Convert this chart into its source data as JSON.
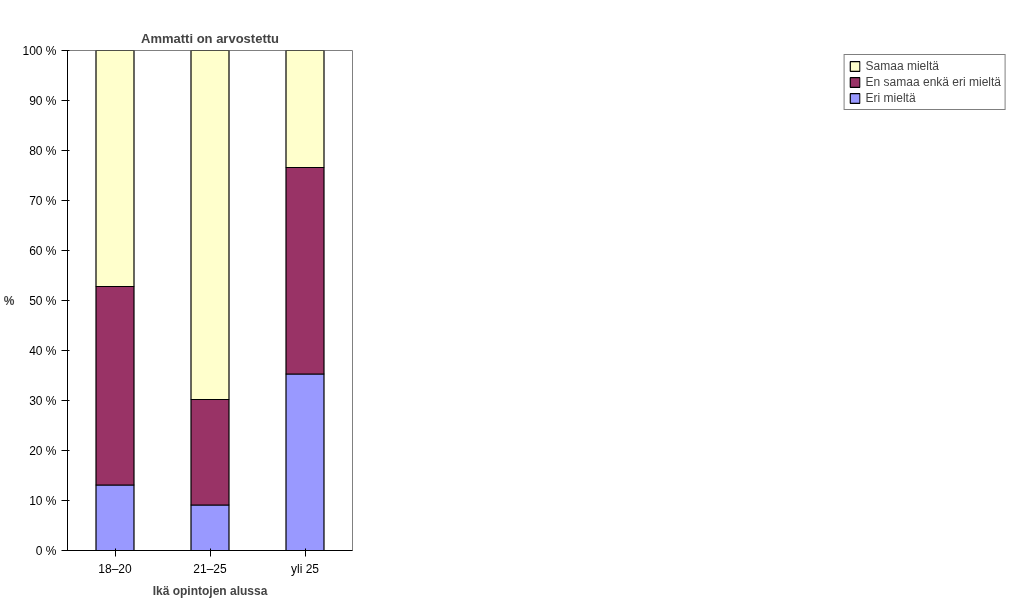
{
  "chart_data": {
    "type": "bar",
    "stacked": true,
    "title": "Ammatti on arvostettu",
    "xlabel": "Ikä opintojen alussa",
    "ylabel": "%",
    "categories": [
      "18–20",
      "21–25",
      "yli 25"
    ],
    "series": [
      {
        "name": "Eri mieltä",
        "color": "#9999ff",
        "values": [
          13.1,
          9.1,
          35.3
        ]
      },
      {
        "name": "En samaa enkä eri mieltä",
        "color": "#993366",
        "values": [
          39.7,
          21.1,
          41.3
        ]
      },
      {
        "name": "Samaa mieltä",
        "color": "#ffffcc",
        "values": [
          47.2,
          69.8,
          23.4
        ]
      }
    ],
    "ylim": [
      0,
      100
    ],
    "yticks": [
      {
        "value": 0,
        "label": "0 %"
      },
      {
        "value": 10,
        "label": "10 %"
      },
      {
        "value": 20,
        "label": "20 %"
      },
      {
        "value": 30,
        "label": "30 %"
      },
      {
        "value": 40,
        "label": "40 %"
      },
      {
        "value": 50,
        "label": "50 %"
      },
      {
        "value": 60,
        "label": "60 %"
      },
      {
        "value": 70,
        "label": "70 %"
      },
      {
        "value": 80,
        "label": "80 %"
      },
      {
        "value": 90,
        "label": "90 %"
      },
      {
        "value": 100,
        "label": "100 %"
      }
    ],
    "legend": "right",
    "grid": false
  }
}
